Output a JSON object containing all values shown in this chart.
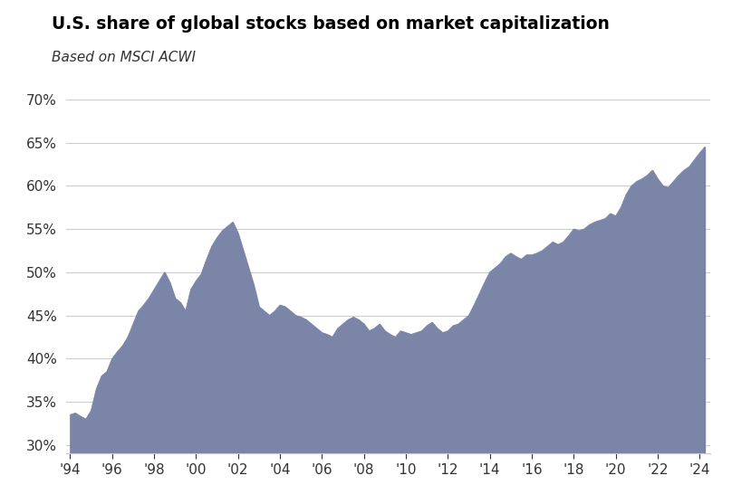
{
  "title": "U.S. share of global stocks based on market capitalization",
  "subtitle": "Based on MSCI ACWI",
  "fill_color": "#7b85a8",
  "line_color": "#7b85a8",
  "background_color": "#ffffff",
  "grid_color": "#cccccc",
  "ylim": [
    0.29,
    0.71
  ],
  "yticks": [
    0.3,
    0.35,
    0.4,
    0.45,
    0.5,
    0.55,
    0.6,
    0.65,
    0.7
  ],
  "xtick_years": [
    1994,
    1996,
    1998,
    2000,
    2002,
    2004,
    2006,
    2008,
    2010,
    2012,
    2014,
    2016,
    2018,
    2020,
    2022,
    2024
  ],
  "data": {
    "dates": [
      1994.0,
      1994.25,
      1994.5,
      1994.75,
      1995.0,
      1995.25,
      1995.5,
      1995.75,
      1996.0,
      1996.25,
      1996.5,
      1996.75,
      1997.0,
      1997.25,
      1997.5,
      1997.75,
      1998.0,
      1998.25,
      1998.5,
      1998.75,
      1999.0,
      1999.25,
      1999.5,
      1999.75,
      2000.0,
      2000.25,
      2000.5,
      2000.75,
      2001.0,
      2001.25,
      2001.5,
      2001.75,
      2002.0,
      2002.25,
      2002.5,
      2002.75,
      2003.0,
      2003.25,
      2003.5,
      2003.75,
      2004.0,
      2004.25,
      2004.5,
      2004.75,
      2005.0,
      2005.25,
      2005.5,
      2005.75,
      2006.0,
      2006.25,
      2006.5,
      2006.75,
      2007.0,
      2007.25,
      2007.5,
      2007.75,
      2008.0,
      2008.25,
      2008.5,
      2008.75,
      2009.0,
      2009.25,
      2009.5,
      2009.75,
      2010.0,
      2010.25,
      2010.5,
      2010.75,
      2011.0,
      2011.25,
      2011.5,
      2011.75,
      2012.0,
      2012.25,
      2012.5,
      2012.75,
      2013.0,
      2013.25,
      2013.5,
      2013.75,
      2014.0,
      2014.25,
      2014.5,
      2014.75,
      2015.0,
      2015.25,
      2015.5,
      2015.75,
      2016.0,
      2016.25,
      2016.5,
      2016.75,
      2017.0,
      2017.25,
      2017.5,
      2017.75,
      2018.0,
      2018.25,
      2018.5,
      2018.75,
      2019.0,
      2019.25,
      2019.5,
      2019.75,
      2020.0,
      2020.25,
      2020.5,
      2020.75,
      2021.0,
      2021.25,
      2021.5,
      2021.75,
      2022.0,
      2022.25,
      2022.5,
      2022.75,
      2023.0,
      2023.25,
      2023.5,
      2023.75,
      2024.0,
      2024.25
    ],
    "values": [
      0.335,
      0.337,
      0.333,
      0.33,
      0.34,
      0.365,
      0.38,
      0.385,
      0.4,
      0.408,
      0.415,
      0.425,
      0.44,
      0.455,
      0.462,
      0.47,
      0.48,
      0.49,
      0.5,
      0.488,
      0.47,
      0.465,
      0.455,
      0.48,
      0.49,
      0.498,
      0.515,
      0.53,
      0.54,
      0.548,
      0.553,
      0.558,
      0.545,
      0.525,
      0.505,
      0.485,
      0.46,
      0.455,
      0.45,
      0.455,
      0.462,
      0.46,
      0.455,
      0.45,
      0.448,
      0.445,
      0.44,
      0.435,
      0.43,
      0.428,
      0.425,
      0.435,
      0.44,
      0.445,
      0.448,
      0.445,
      0.44,
      0.432,
      0.435,
      0.44,
      0.432,
      0.428,
      0.425,
      0.432,
      0.43,
      0.428,
      0.43,
      0.432,
      0.438,
      0.442,
      0.435,
      0.43,
      0.432,
      0.438,
      0.44,
      0.445,
      0.45,
      0.462,
      0.475,
      0.488,
      0.5,
      0.505,
      0.51,
      0.518,
      0.522,
      0.518,
      0.515,
      0.52,
      0.52,
      0.522,
      0.525,
      0.53,
      0.535,
      0.532,
      0.535,
      0.542,
      0.55,
      0.548,
      0.55,
      0.555,
      0.558,
      0.56,
      0.562,
      0.568,
      0.565,
      0.575,
      0.59,
      0.6,
      0.605,
      0.608,
      0.612,
      0.618,
      0.608,
      0.6,
      0.598,
      0.605,
      0.612,
      0.618,
      0.622,
      0.63,
      0.638,
      0.645
    ]
  }
}
